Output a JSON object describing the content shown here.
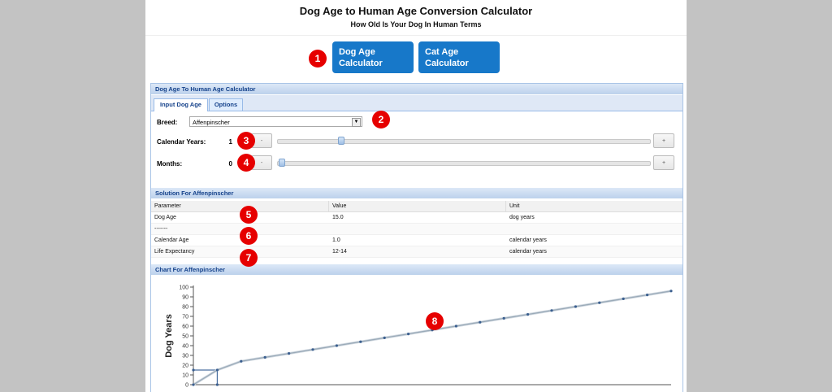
{
  "header": {
    "title": "Dog Age to Human Age Conversion Calculator",
    "subtitle": "How Old Is Your Dog In Human Terms"
  },
  "nav": {
    "dog_button": "Dog Age Calculator",
    "cat_button": "Cat Age Calculator"
  },
  "badges": [
    "1",
    "2",
    "3",
    "4",
    "5",
    "6",
    "7",
    "8"
  ],
  "calculator": {
    "panel_title": "Dog Age To Human Age Calculator",
    "tabs": [
      "Input Dog Age",
      "Options"
    ],
    "breed_label": "Breed:",
    "breed_value": "Affenpinscher",
    "years_label": "Calendar Years:",
    "years_value": "1",
    "years_fraction": 0.12,
    "months_label": "Months:",
    "months_value": "0",
    "months_fraction": 0.0,
    "minus": "-",
    "plus": "+"
  },
  "solution": {
    "title": "Solution For Affenpinscher",
    "headers": [
      "Parameter",
      "Value",
      "Unit"
    ],
    "rows": [
      {
        "parameter": "Dog Age",
        "value": "15.0",
        "unit": "dog years"
      },
      {
        "parameter": "-------",
        "value": "",
        "unit": ""
      },
      {
        "parameter": "Calendar Age",
        "value": "1.0",
        "unit": "calendar years"
      },
      {
        "parameter": "Life Expectancy",
        "value": "12-14",
        "unit": "calendar years"
      }
    ]
  },
  "chart_panel": {
    "title": "Chart For Affenpinscher"
  },
  "chart_data": {
    "type": "line",
    "ylabel": "Dog Years",
    "xlabel": "",
    "ylim": [
      0,
      100
    ],
    "xlim": [
      0,
      20
    ],
    "yticks": [
      0,
      10,
      20,
      30,
      40,
      50,
      60,
      70,
      80,
      90,
      100
    ],
    "grid": false,
    "series": [
      {
        "x": [
          0,
          1,
          2,
          3,
          4,
          5,
          6,
          7,
          8,
          9,
          10,
          11,
          12,
          13,
          14,
          15,
          16,
          17,
          18,
          19,
          20
        ],
        "y": [
          0,
          15,
          24,
          28,
          32,
          36,
          40,
          44,
          48,
          52,
          56,
          60,
          64,
          68,
          72,
          76,
          80,
          84,
          88,
          92,
          96
        ]
      }
    ],
    "marker": {
      "x": 1,
      "y": 15
    },
    "colors": {
      "line": "#9aaab8",
      "point": "#3b5f8f",
      "guide": "#4a6fa0"
    }
  }
}
